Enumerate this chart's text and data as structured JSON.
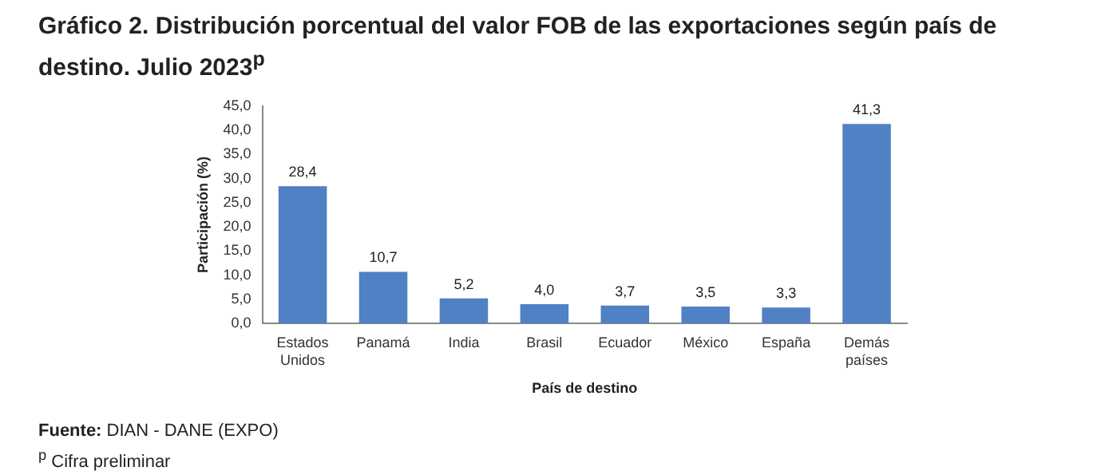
{
  "chart_data": {
    "type": "bar",
    "title": "Gráfico 2. Distribución porcentual del valor FOB de las exportaciones según país de destino. Julio 2023$^{p}$",
    "categories": [
      "Estados Unidos",
      "Panamá",
      "India",
      "Brasil",
      "Ecuador",
      "México",
      "España",
      "Demás países"
    ],
    "values": [
      28.4,
      10.7,
      5.2,
      4.0,
      3.7,
      3.5,
      3.3,
      41.3
    ],
    "value_labels": [
      "28,4",
      "10,7",
      "5,2",
      "4,0",
      "3,7",
      "3,5",
      "3,3",
      "41,3"
    ],
    "color": "#4f81c4",
    "ylim": [
      0,
      45
    ],
    "yticks": [
      {
        "value": 0,
        "label": "0,0"
      },
      {
        "value": 5,
        "label": "5,0"
      },
      {
        "value": 10,
        "label": "10,0"
      },
      {
        "value": 15,
        "label": "15,0"
      },
      {
        "value": 20,
        "label": "20,0"
      },
      {
        "value": 25,
        "label": "25,0"
      },
      {
        "value": 30,
        "label": "30,0"
      },
      {
        "value": 35,
        "label": "35,0"
      },
      {
        "value": 40,
        "label": "40,0"
      },
      {
        "value": 45,
        "label": "45,0"
      }
    ],
    "xlabel": "País de destino",
    "ylabel": "Participación (%)",
    "grid": false,
    "legend": false,
    "annotations": [
      "Fuente: DIAN - DANE (EXPO)",
      "$^{p}$ Cifra preliminar"
    ]
  }
}
